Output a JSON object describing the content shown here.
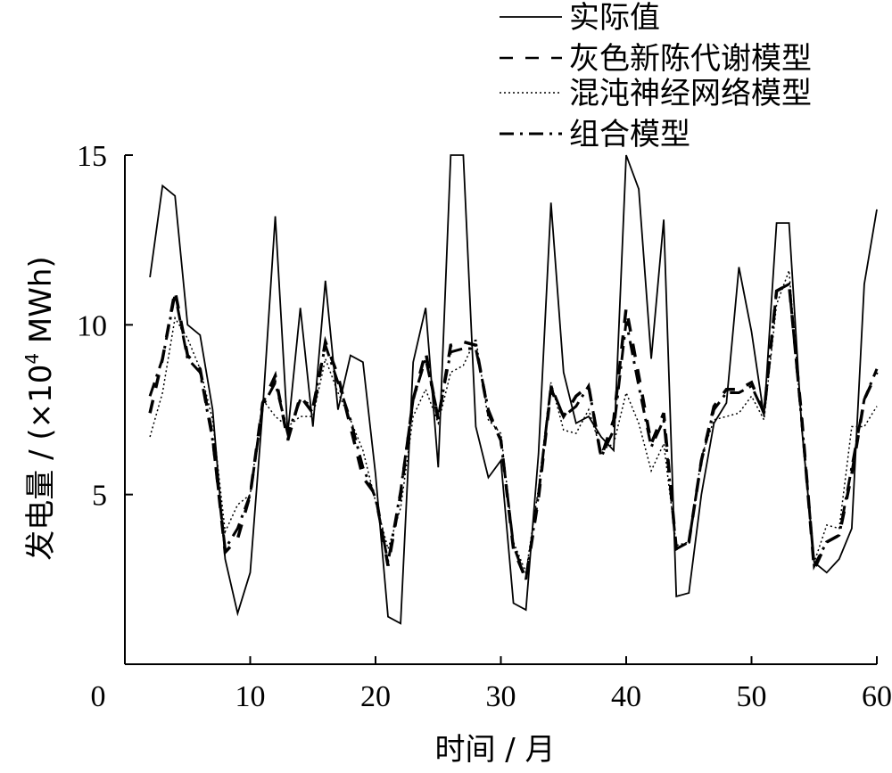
{
  "chart_data": {
    "type": "line",
    "xlabel": "时间 / 月",
    "ylabel_prefix": "发电量 / (×10",
    "ylabel_exp": "4",
    "ylabel_suffix": " MWh)",
    "xlim": [
      0,
      60
    ],
    "ylim": [
      0,
      15
    ],
    "x_axis_min_visible": 1.5,
    "x_ticks": [
      0,
      10,
      20,
      30,
      40,
      50,
      60
    ],
    "y_ticks": [
      5,
      10,
      15
    ],
    "grid": false,
    "legend_position": "top-right",
    "series": [
      {
        "name": "实际值",
        "style": "solid",
        "x": [
          2,
          3,
          4,
          5,
          6,
          7,
          8,
          9,
          10,
          11,
          12,
          13,
          14,
          15,
          16,
          17,
          18,
          19,
          20,
          21,
          22,
          23,
          24,
          25,
          26,
          27,
          28,
          29,
          30,
          31,
          32,
          33,
          34,
          35,
          36,
          37,
          38,
          39,
          40,
          41,
          42,
          43,
          44,
          45,
          46,
          47,
          48,
          49,
          50,
          51,
          52,
          53,
          54,
          55,
          56,
          57,
          58,
          59,
          60
        ],
        "y": [
          11.4,
          14.1,
          13.8,
          10.0,
          9.7,
          7.5,
          3.1,
          1.5,
          2.7,
          7.5,
          13.2,
          6.8,
          10.5,
          7.0,
          11.3,
          7.5,
          9.1,
          8.9,
          5.6,
          1.4,
          1.2,
          8.9,
          10.5,
          5.8,
          15.0,
          15.0,
          7.0,
          5.5,
          6.0,
          1.8,
          1.6,
          6.2,
          13.6,
          8.6,
          7.1,
          7.3,
          6.7,
          6.3,
          15.0,
          14.0,
          9.0,
          13.1,
          2.0,
          2.1,
          5.0,
          7.1,
          7.7,
          11.7,
          9.8,
          7.3,
          13.0,
          13.0,
          7.0,
          3.0,
          2.7,
          3.1,
          4.0,
          11.2,
          13.4
        ]
      },
      {
        "name": "灰色新陈代谢模型",
        "style": "dashed",
        "x": [
          2,
          3,
          4,
          5,
          6,
          7,
          8,
          9,
          10,
          11,
          12,
          13,
          14,
          15,
          16,
          17,
          18,
          19,
          20,
          21,
          22,
          23,
          24,
          25,
          26,
          27,
          28,
          29,
          30,
          31,
          32,
          33,
          34,
          35,
          36,
          37,
          38,
          39,
          40,
          41,
          42,
          43,
          44,
          45,
          46,
          47,
          48,
          49,
          50,
          51,
          52,
          53,
          54,
          55,
          56,
          57,
          58,
          59,
          60
        ],
        "y": [
          7.4,
          9.0,
          11.0,
          9.1,
          8.7,
          6.7,
          3.3,
          3.7,
          5.0,
          7.7,
          8.5,
          6.6,
          7.9,
          7.4,
          9.5,
          8.5,
          7.0,
          5.5,
          5.0,
          2.9,
          5.0,
          7.8,
          9.2,
          7.2,
          9.4,
          9.5,
          9.4,
          7.4,
          6.6,
          3.4,
          2.5,
          4.9,
          8.1,
          7.3,
          7.9,
          8.2,
          6.1,
          7.2,
          10.5,
          8.5,
          6.5,
          7.4,
          3.4,
          3.6,
          6.0,
          7.6,
          8.1,
          8.1,
          8.3,
          7.4,
          11.0,
          11.2,
          7.3,
          2.8,
          3.6,
          3.8,
          5.6,
          7.8,
          8.6
        ]
      },
      {
        "name": "混沌神经网络模型",
        "style": "dotted",
        "x": [
          2,
          3,
          4,
          5,
          6,
          7,
          8,
          9,
          10,
          11,
          12,
          13,
          14,
          15,
          16,
          17,
          18,
          19,
          20,
          21,
          22,
          23,
          24,
          25,
          26,
          27,
          28,
          29,
          30,
          31,
          32,
          33,
          34,
          35,
          36,
          37,
          38,
          39,
          40,
          41,
          42,
          43,
          44,
          45,
          46,
          47,
          48,
          49,
          50,
          51,
          52,
          53,
          54,
          55,
          56,
          57,
          58,
          59,
          60
        ],
        "y": [
          6.7,
          8.0,
          10.2,
          9.6,
          8.7,
          7.2,
          3.9,
          4.7,
          5.0,
          7.8,
          7.3,
          7.0,
          7.3,
          7.3,
          9.0,
          8.0,
          7.2,
          6.3,
          4.8,
          3.4,
          4.6,
          7.3,
          8.1,
          7.1,
          8.6,
          8.8,
          9.6,
          7.2,
          6.8,
          3.6,
          2.7,
          5.2,
          8.3,
          6.9,
          6.8,
          7.5,
          6.3,
          6.5,
          8.0,
          7.1,
          5.7,
          6.5,
          3.5,
          3.6,
          6.1,
          7.2,
          7.3,
          7.4,
          7.9,
          7.2,
          10.6,
          11.6,
          7.1,
          3.0,
          4.1,
          4.0,
          7.0,
          7.0,
          7.6
        ]
      },
      {
        "name": "组合模型",
        "style": "dashdot",
        "x": [
          2,
          3,
          4,
          5,
          6,
          7,
          8,
          9,
          10,
          11,
          12,
          13,
          14,
          15,
          16,
          17,
          18,
          19,
          20,
          21,
          22,
          23,
          24,
          25,
          26,
          27,
          28,
          29,
          30,
          31,
          32,
          33,
          34,
          35,
          36,
          37,
          38,
          39,
          40,
          41,
          42,
          43,
          44,
          45,
          46,
          47,
          48,
          49,
          50,
          51,
          52,
          53,
          54,
          55,
          56,
          57,
          58,
          59,
          60
        ],
        "y": [
          7.9,
          9.0,
          10.9,
          9.0,
          8.6,
          6.6,
          3.4,
          4.0,
          5.0,
          7.6,
          8.3,
          6.8,
          7.8,
          7.6,
          9.4,
          8.3,
          7.2,
          5.8,
          4.9,
          3.0,
          5.1,
          7.8,
          9.0,
          7.3,
          9.2,
          9.3,
          9.3,
          7.5,
          6.6,
          3.5,
          2.5,
          5.0,
          8.2,
          7.3,
          7.6,
          8.2,
          6.1,
          6.9,
          10.1,
          8.2,
          6.4,
          7.2,
          3.4,
          3.6,
          6.0,
          7.5,
          8.0,
          8.0,
          8.2,
          7.4,
          11.0,
          11.2,
          7.2,
          2.9,
          3.6,
          3.8,
          5.8,
          7.8,
          8.7
        ]
      }
    ]
  }
}
